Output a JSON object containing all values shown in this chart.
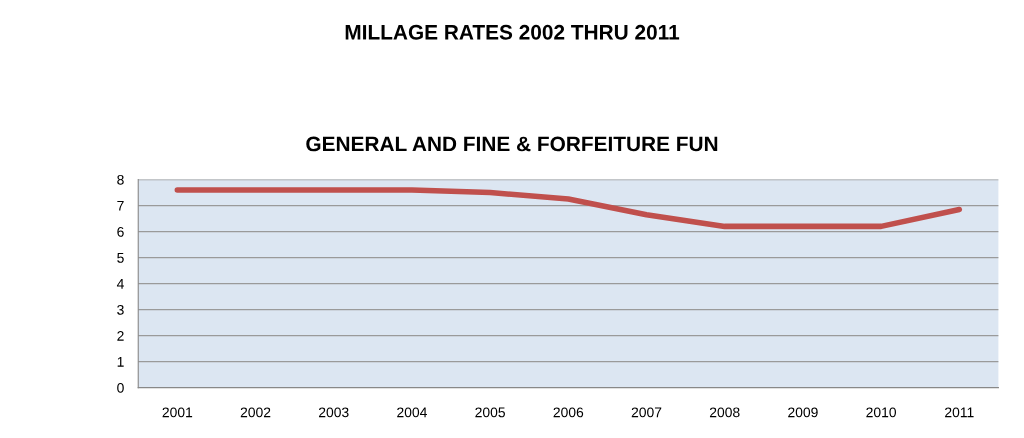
{
  "chart_data": {
    "type": "line",
    "title": "MILLAGE RATES 2002 THRU 2011",
    "subtitle": "GENERAL AND FINE & FORFEITURE FUN",
    "categories": [
      "2001",
      "2002",
      "2003",
      "2004",
      "2005",
      "2006",
      "2007",
      "2008",
      "2009",
      "2010",
      "2011"
    ],
    "series": [
      {
        "color": "#c0504d",
        "values": [
          7.6,
          7.6,
          7.6,
          7.6,
          7.5,
          7.25,
          6.65,
          6.2,
          6.2,
          6.2,
          6.85
        ]
      }
    ],
    "ylim": [
      0,
      8
    ],
    "yticks": [
      0,
      1,
      2,
      3,
      4,
      5,
      6,
      7,
      8
    ],
    "grid": "y",
    "marker": "none",
    "line_style": "solid",
    "legend": false
  }
}
